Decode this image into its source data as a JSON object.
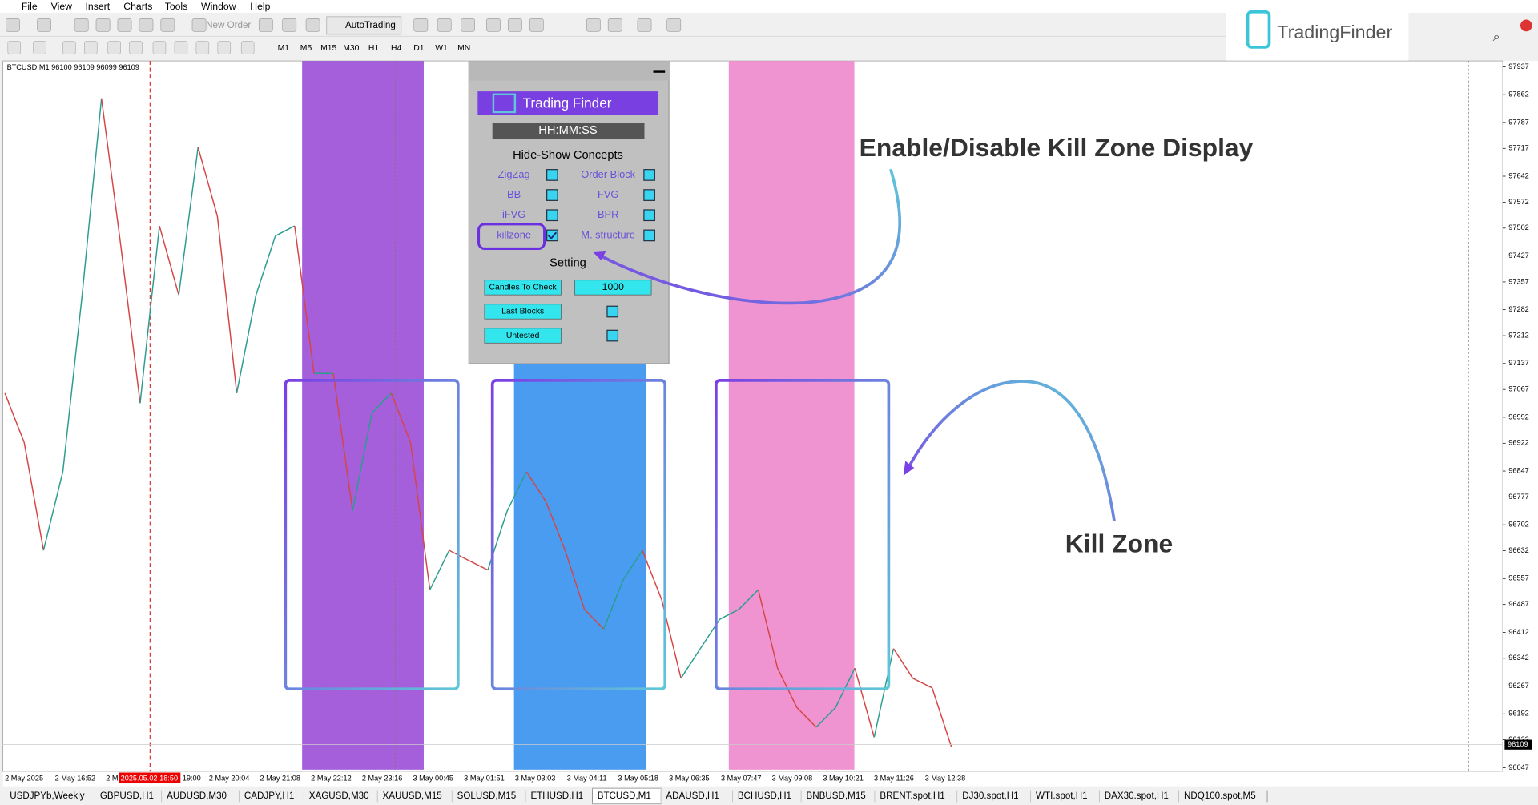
{
  "menu": [
    "File",
    "View",
    "Insert",
    "Charts",
    "Tools",
    "Window",
    "Help"
  ],
  "toolbar": {
    "new_order": "New Order",
    "autotrading": "AutoTrading",
    "timeframes": [
      "M1",
      "M5",
      "M15",
      "M30",
      "H1",
      "H4",
      "D1",
      "W1",
      "MN"
    ]
  },
  "logo": "TradingFinder",
  "chart": {
    "symbol_info": "BTCUSD,M1  96100 96109 96099 96109",
    "price_axis": {
      "ylim": [
        96047,
        97937
      ],
      "ticks": [
        97937,
        97862,
        97787,
        97717,
        97642,
        97572,
        97502,
        97427,
        97357,
        97282,
        97212,
        97137,
        97067,
        96992,
        96922,
        96847,
        96777,
        96702,
        96632,
        96557,
        96487,
        96412,
        96342,
        96267,
        96192,
        96122,
        96047
      ],
      "current": 96109
    },
    "time_labels": [
      "2 May 2025",
      "2 May 16:52",
      "2 M",
      "19:00",
      "2 May 20:04",
      "2 May 21:08",
      "2 May 22:12",
      "2 May 23:16",
      "3 May 00:45",
      "3 May 01:51",
      "3 May 03:03",
      "3 May 04:11",
      "3 May 05:18",
      "3 May 06:35",
      "3 May 07:47",
      "3 May 09:08",
      "3 May 10:21",
      "3 May 11:26",
      "3 May 12:38"
    ],
    "time_marker": "2025.05.02 18:50",
    "price_points": [
      97057,
      96924,
      96633,
      96845,
      97322,
      97852,
      97455,
      97030,
      97508,
      97322,
      97720,
      97534,
      97057,
      97322,
      97481,
      97508,
      97110,
      97110,
      96739,
      97004,
      97057,
      96924,
      96527,
      96633,
      96606,
      96580,
      96739,
      96845,
      96765,
      96633,
      96474,
      96421,
      96553,
      96633,
      96500,
      96288,
      96368,
      96447,
      96474,
      96527,
      96315,
      96209,
      96156,
      96209,
      96315,
      96129,
      96368,
      96288,
      96262,
      96103
    ]
  },
  "panel": {
    "logo": "Trading Finder",
    "clock": "HH:MM:SS",
    "concepts_title": "Hide-Show Concepts",
    "concepts": [
      {
        "label": "ZigZag",
        "checked": false
      },
      {
        "label": "Order Block",
        "checked": false
      },
      {
        "label": "BB",
        "checked": false
      },
      {
        "label": "FVG",
        "checked": false
      },
      {
        "label": "iFVG",
        "checked": false
      },
      {
        "label": "BPR",
        "checked": false
      },
      {
        "label": "killzone",
        "checked": true
      },
      {
        "label": "M. structure",
        "checked": false
      }
    ],
    "setting_title": "Setting",
    "settings": [
      {
        "label": "Candles To Check",
        "value": 1000
      },
      {
        "label": "Last Blocks",
        "checked": false
      },
      {
        "label": "Untested",
        "checked": false
      }
    ]
  },
  "annotations": {
    "toggle": "Enable/Disable Kill Zone Display",
    "kill_zone": "Kill Zone"
  },
  "tabs": [
    "USDJPYb,Weekly",
    "GBPUSD,H1",
    "AUDUSD,M30",
    "CADJPY,H1",
    "XAGUSD,M30",
    "XAUUSD,M15",
    "SOLUSD,M15",
    "ETHUSD,H1",
    "BTCUSD,M1",
    "ADAUSD,H1",
    "BCHUSD,H1",
    "BNBUSD,M15",
    "BRENT.spot,H1",
    "DJ30.spot,H1",
    "WTI.spot,H1",
    "DAX30.spot,H1",
    "NDQ100.spot,M5"
  ],
  "active_tab": 8
}
